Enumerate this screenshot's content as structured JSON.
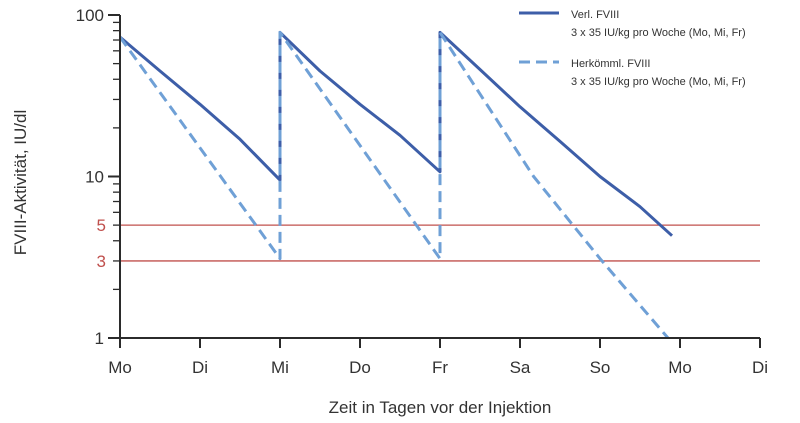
{
  "chart_data": {
    "type": "line",
    "title": "",
    "xlabel": "Zeit in Tagen vor der Injektion",
    "ylabel": "FVIII-Aktivität, IU/dl",
    "x_scale": "linear",
    "y_scale": "log",
    "xlim": [
      0,
      8
    ],
    "ylim": [
      1,
      100
    ],
    "x_ticks": [
      {
        "value": 0,
        "label": "Mo"
      },
      {
        "value": 1,
        "label": "Di"
      },
      {
        "value": 2,
        "label": "Mi"
      },
      {
        "value": 3,
        "label": "Do"
      },
      {
        "value": 4,
        "label": "Fr"
      },
      {
        "value": 5,
        "label": "Sa"
      },
      {
        "value": 6,
        "label": "So"
      },
      {
        "value": 7,
        "label": "Mo"
      },
      {
        "value": 8,
        "label": "Di"
      }
    ],
    "y_tick_labels": [
      {
        "value": 1,
        "label": "1"
      },
      {
        "value": 10,
        "label": "10"
      },
      {
        "value": 100,
        "label": "100"
      }
    ],
    "reference_lines": [
      {
        "value": 5,
        "label": "5",
        "color": "#c0504d"
      },
      {
        "value": 3,
        "label": "3",
        "color": "#c0504d"
      }
    ],
    "legend_position": "top-right",
    "series": [
      {
        "name": "Verl. FVIII",
        "subtitle": "3 x 35 IU/kg pro Woche (Mo, Mi, Fr)",
        "style": "solid",
        "color": "#3d5ea8",
        "points": [
          [
            0,
            73
          ],
          [
            0.5,
            45
          ],
          [
            1,
            28
          ],
          [
            1.5,
            17
          ],
          [
            2,
            9.5
          ],
          [
            2,
            78
          ],
          [
            2.5,
            45
          ],
          [
            3,
            28
          ],
          [
            3.5,
            18
          ],
          [
            4,
            10.7
          ],
          [
            4,
            78
          ],
          [
            4.5,
            46
          ],
          [
            5,
            27
          ],
          [
            5.5,
            16.5
          ],
          [
            6,
            10
          ],
          [
            6.5,
            6.5
          ],
          [
            6.9,
            4.3
          ]
        ]
      },
      {
        "name": "Herkömml. FVIII",
        "subtitle": "3 x 35 IU/kg pro Woche (Mo, Mi, Fr)",
        "style": "dashed",
        "color": "#6fa0d6",
        "points": [
          [
            0,
            73
          ],
          [
            2,
            3.1
          ],
          [
            2,
            78
          ],
          [
            4,
            3.1
          ],
          [
            4,
            78
          ],
          [
            5.17,
            10
          ],
          [
            6,
            3.1
          ],
          [
            6.85,
            1
          ]
        ]
      }
    ]
  }
}
